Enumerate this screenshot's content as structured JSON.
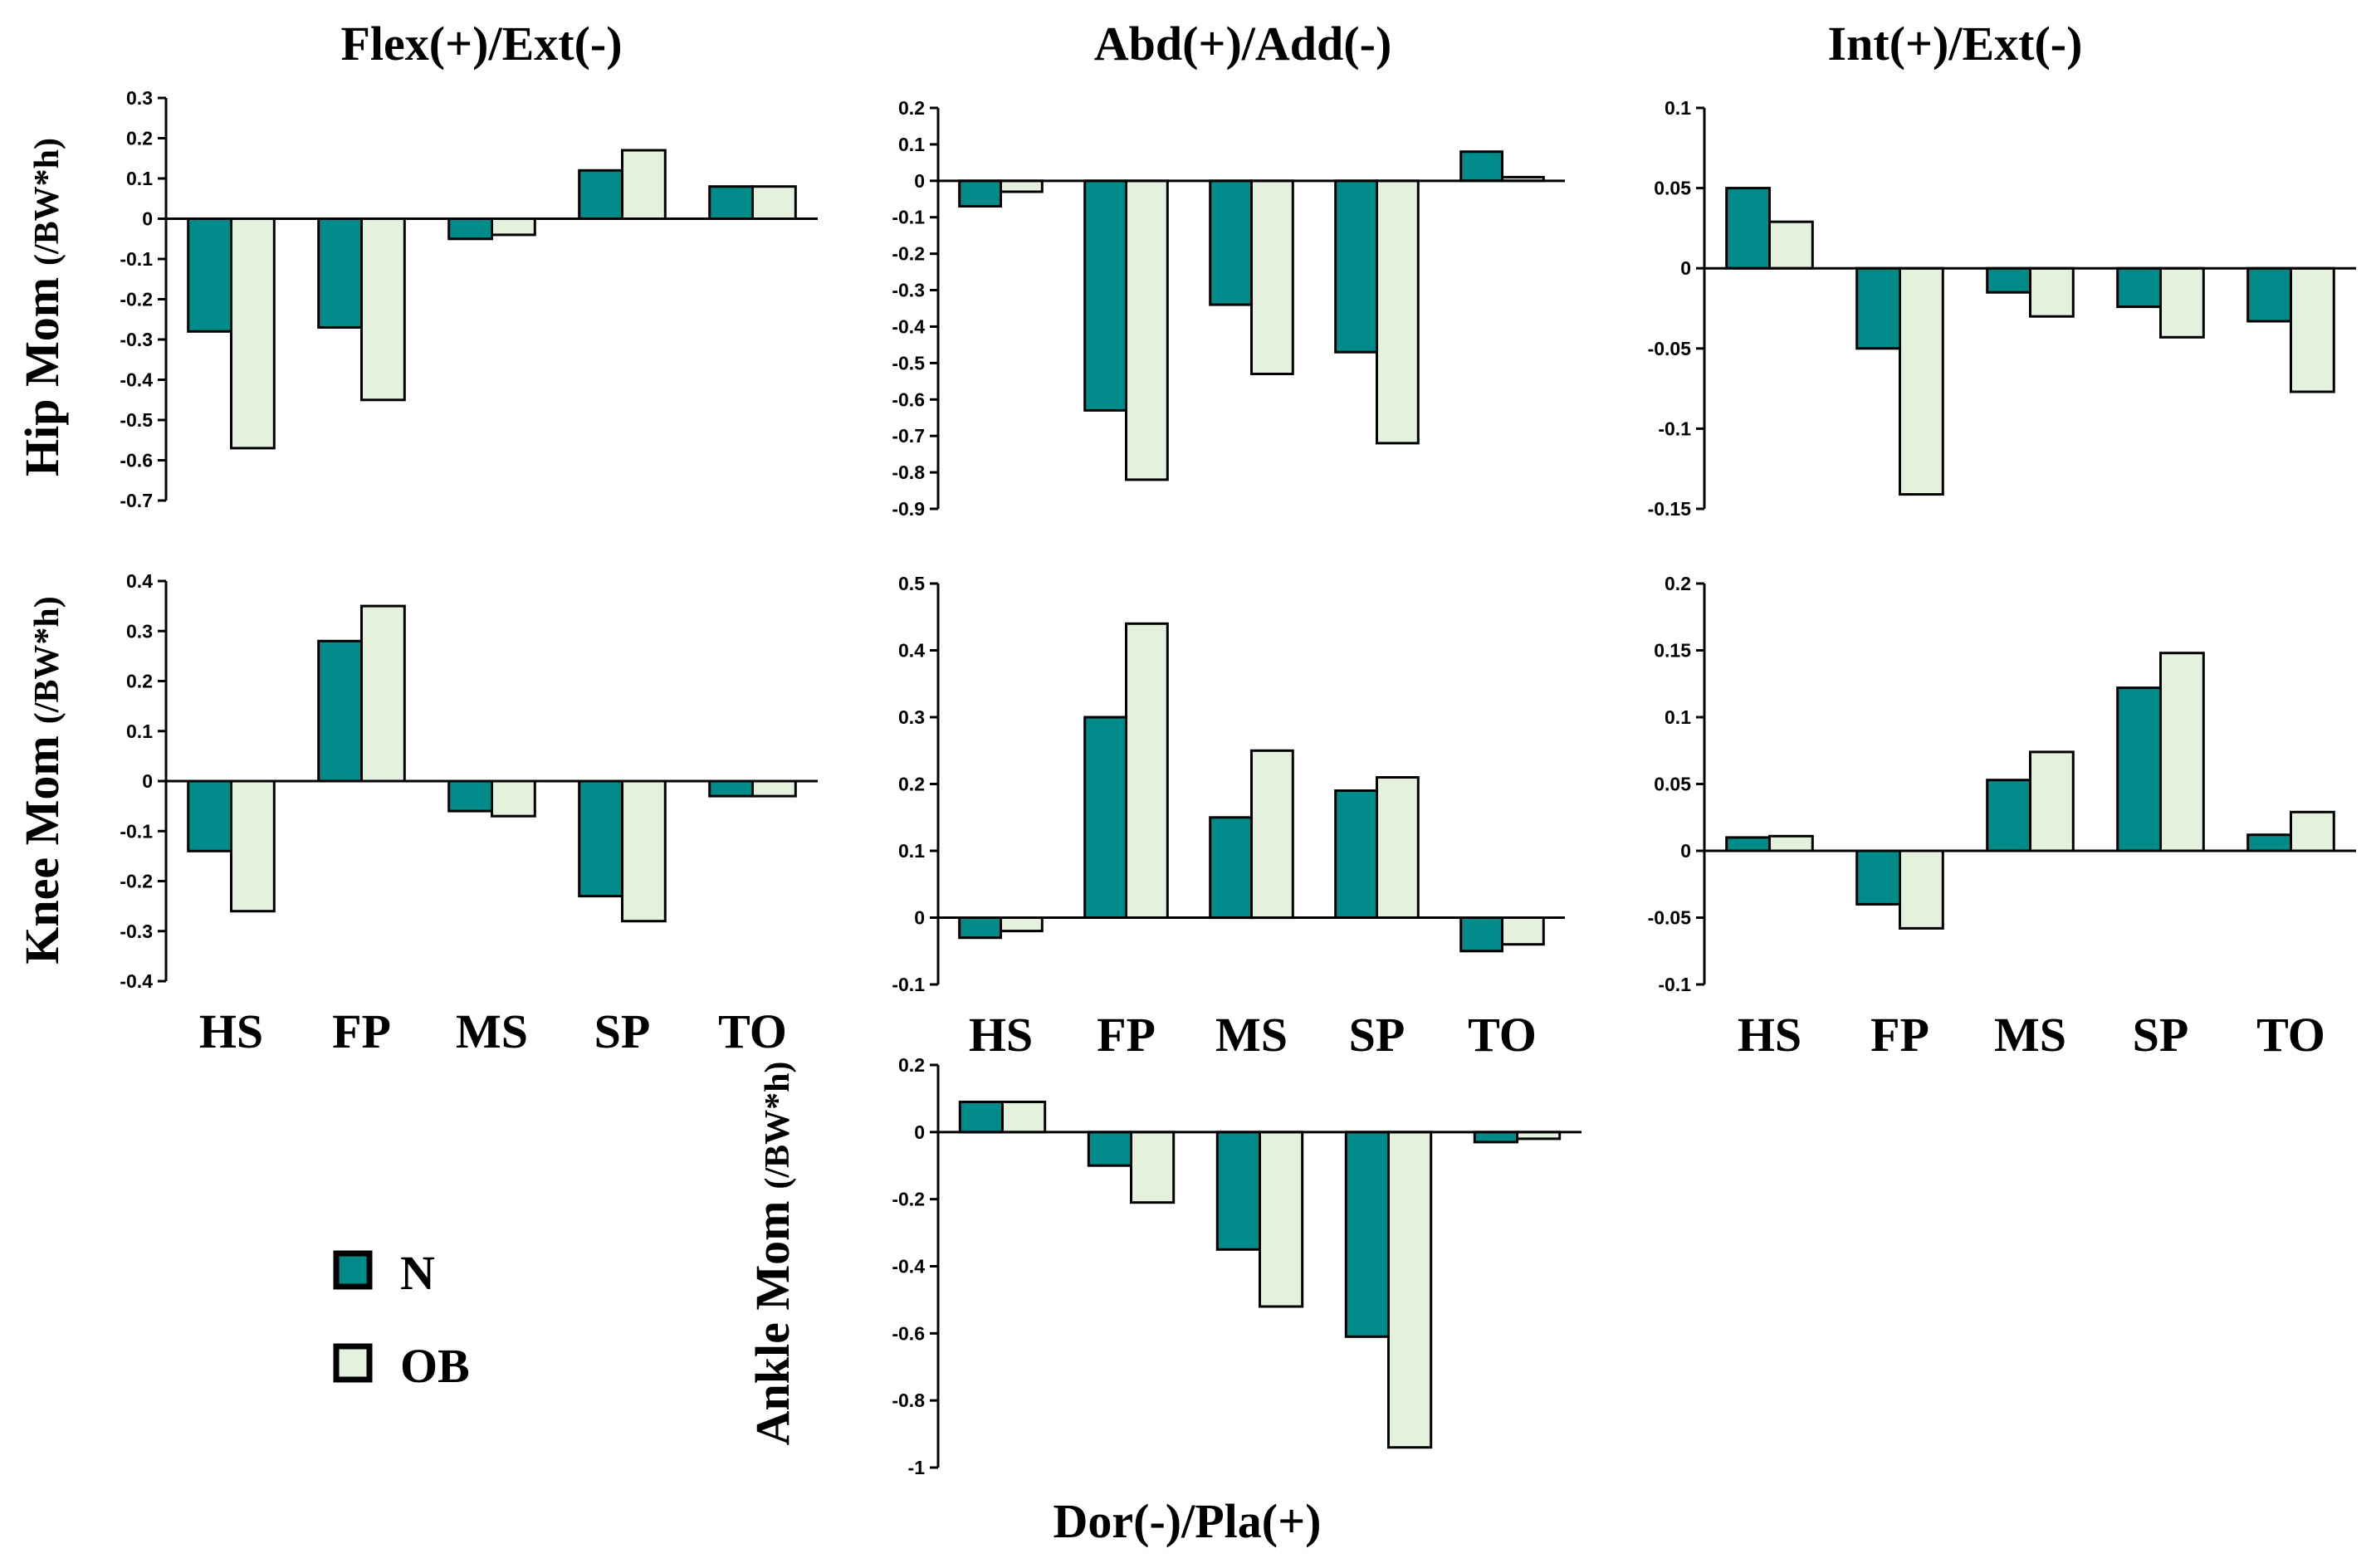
{
  "titles": {
    "flex": "Flex(+)/Ext(-)",
    "abd": "Abd(+)/Add(-)",
    "int": "Int(+)/Ext(-)",
    "dor": "Dor(-)/Pla(+)"
  },
  "row_labels": {
    "hip": "Hip Mom",
    "knee": "Knee Mom",
    "ankle": "Ankle Mom",
    "unit": "(/BW*h)"
  },
  "legend": [
    {
      "label": "N",
      "color": "#008B8B"
    },
    {
      "label": "OB",
      "color": "#E4F1DC"
    }
  ],
  "chart_data": [
    {
      "type": "bar",
      "id": "hip-flex",
      "categories": [
        "HS",
        "FP",
        "MS",
        "SP",
        "TO"
      ],
      "series": [
        {
          "name": "N",
          "values": [
            -0.28,
            -0.27,
            -0.05,
            0.12,
            0.08
          ]
        },
        {
          "name": "OB",
          "values": [
            -0.57,
            -0.45,
            -0.04,
            0.17,
            0.08
          ]
        }
      ],
      "ylim": [
        -0.7,
        0.3
      ],
      "yticks": [
        0.3,
        0.2,
        0.1,
        0,
        -0.1,
        -0.2,
        -0.3,
        -0.4,
        -0.5,
        -0.6,
        -0.7
      ],
      "ytick_labels": [
        "0.3",
        "0.2",
        "0.1",
        "0",
        "-0.1",
        "-0.2",
        "-0.3",
        "-0.4",
        "-0.5",
        "-0.6",
        "-0.7"
      ],
      "show_categories": false
    },
    {
      "type": "bar",
      "id": "hip-abd",
      "categories": [
        "HS",
        "FP",
        "MS",
        "SP",
        "TO"
      ],
      "series": [
        {
          "name": "N",
          "values": [
            -0.07,
            -0.63,
            -0.34,
            -0.47,
            0.08
          ]
        },
        {
          "name": "OB",
          "values": [
            -0.03,
            -0.82,
            -0.53,
            -0.72,
            0.01
          ]
        }
      ],
      "ylim": [
        -0.9,
        0.2
      ],
      "yticks": [
        0.2,
        0.1,
        0,
        -0.1,
        -0.2,
        -0.3,
        -0.4,
        -0.5,
        -0.6,
        -0.7,
        -0.8,
        -0.9
      ],
      "ytick_labels": [
        "0.2",
        "0.1",
        "0",
        "-0.1",
        "-0.2",
        "-0.3",
        "-0.4",
        "-0.5",
        "-0.6",
        "-0.7",
        "-0.8",
        "-0.9"
      ],
      "show_categories": false
    },
    {
      "type": "bar",
      "id": "hip-int",
      "categories": [
        "HS",
        "FP",
        "MS",
        "SP",
        "TO"
      ],
      "series": [
        {
          "name": "N",
          "values": [
            0.05,
            -0.05,
            -0.015,
            -0.024,
            -0.033
          ]
        },
        {
          "name": "OB",
          "values": [
            0.029,
            -0.141,
            -0.03,
            -0.043,
            -0.077
          ]
        }
      ],
      "ylim": [
        -0.15,
        0.1
      ],
      "yticks": [
        0.1,
        0.05,
        0,
        -0.05,
        -0.1,
        -0.15
      ],
      "ytick_labels": [
        "0.1",
        "0.05",
        "0",
        "-0.05",
        "-0.1",
        "-0.15"
      ],
      "show_categories": false
    },
    {
      "type": "bar",
      "id": "knee-flex",
      "categories": [
        "HS",
        "FP",
        "MS",
        "SP",
        "TO"
      ],
      "series": [
        {
          "name": "N",
          "values": [
            -0.14,
            0.28,
            -0.06,
            -0.23,
            -0.03
          ]
        },
        {
          "name": "OB",
          "values": [
            -0.26,
            0.35,
            -0.07,
            -0.28,
            -0.03
          ]
        }
      ],
      "ylim": [
        -0.4,
        0.4
      ],
      "yticks": [
        0.4,
        0.3,
        0.2,
        0.1,
        0,
        -0.1,
        -0.2,
        -0.3,
        -0.4
      ],
      "ytick_labels": [
        "0.4",
        "0.3",
        "0.2",
        "0.1",
        "0",
        "-0.1",
        "-0.2",
        "-0.3",
        "-0.4"
      ],
      "show_categories": true
    },
    {
      "type": "bar",
      "id": "knee-abd",
      "categories": [
        "HS",
        "FP",
        "MS",
        "SP",
        "TO"
      ],
      "series": [
        {
          "name": "N",
          "values": [
            -0.03,
            0.3,
            0.15,
            0.19,
            -0.05
          ]
        },
        {
          "name": "OB",
          "values": [
            -0.02,
            0.44,
            0.25,
            0.21,
            -0.04
          ]
        }
      ],
      "ylim": [
        -0.1,
        0.5
      ],
      "yticks": [
        0.5,
        0.4,
        0.3,
        0.2,
        0.1,
        0,
        -0.1
      ],
      "ytick_labels": [
        "0.5",
        "0.4",
        "0.3",
        "0.2",
        "0.1",
        "0",
        "-0.1"
      ],
      "show_categories": true
    },
    {
      "type": "bar",
      "id": "knee-int",
      "categories": [
        "HS",
        "FP",
        "MS",
        "SP",
        "TO"
      ],
      "series": [
        {
          "name": "N",
          "values": [
            0.01,
            -0.04,
            0.053,
            0.122,
            0.012
          ]
        },
        {
          "name": "OB",
          "values": [
            0.011,
            -0.058,
            0.074,
            0.148,
            0.029
          ]
        }
      ],
      "ylim": [
        -0.1,
        0.2
      ],
      "yticks": [
        0.2,
        0.15,
        0.1,
        0.05,
        0,
        -0.05,
        -0.1
      ],
      "ytick_labels": [
        "0.2",
        "0.15",
        "0.1",
        "0.05",
        "0",
        "-0.05",
        "-0.1"
      ],
      "show_categories": true
    },
    {
      "type": "bar",
      "id": "ankle-dor",
      "categories": [
        "HS",
        "FP",
        "MS",
        "SP",
        "TO"
      ],
      "series": [
        {
          "name": "N",
          "values": [
            0.09,
            -0.1,
            -0.35,
            -0.61,
            -0.03
          ]
        },
        {
          "name": "OB",
          "values": [
            0.09,
            -0.21,
            -0.52,
            -0.94,
            -0.02
          ]
        }
      ],
      "ylim": [
        -1,
        0.2
      ],
      "yticks": [
        0.2,
        0,
        -0.2,
        -0.4,
        -0.6,
        -0.8,
        -1
      ],
      "ytick_labels": [
        "0.2",
        "0",
        "-0.2",
        "-0.4",
        "-0.6",
        "-0.8",
        "-1"
      ],
      "show_categories": false
    }
  ]
}
